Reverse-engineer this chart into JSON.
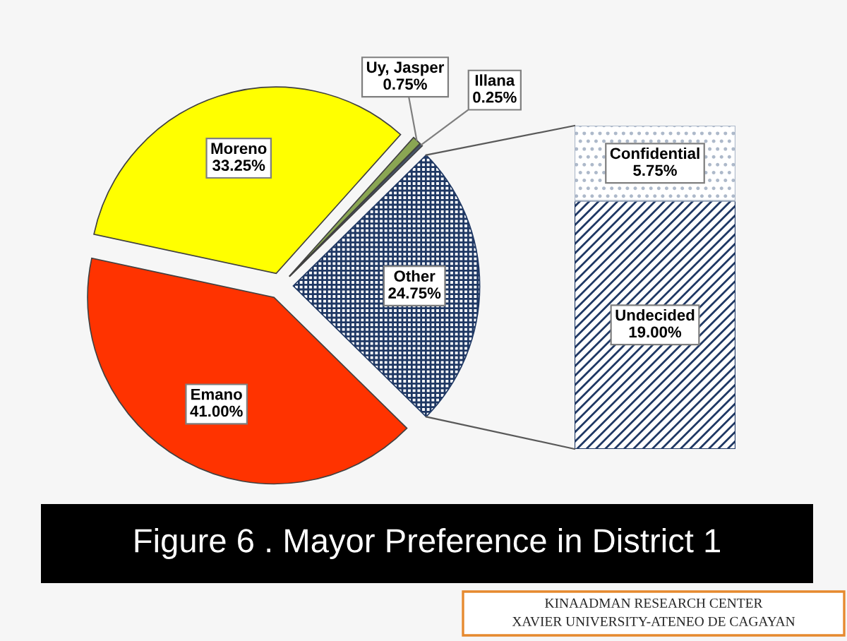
{
  "chart_data": [
    {
      "type": "pie",
      "title": "Figure 6 . Mayor Preference in District 1",
      "categories": [
        "Emano",
        "Moreno",
        "Uy, Jasper",
        "Illana",
        "Other"
      ],
      "values": [
        41.0,
        33.25,
        0.75,
        0.25,
        24.75
      ],
      "value_labels": [
        "41.00%",
        "33.25%",
        "0.75%",
        "0.25%",
        "24.75%"
      ],
      "colors": [
        "#ff3300",
        "#ffff00",
        "#8aa653",
        "#44546a",
        "#1f3864"
      ],
      "annotations": [
        "KINAADMAN RESEARCH CENTER",
        "XAVIER UNIVERSITY-ATENEO DE CAGAYAN"
      ]
    },
    {
      "type": "bar",
      "stacked": true,
      "categories": [
        null
      ],
      "series": [
        {
          "name": "Undecided",
          "color": "#1f3864",
          "values": [
            19.0
          ],
          "value_labels": [
            "19.00%"
          ]
        },
        {
          "name": "Confidential",
          "color": "#adb9ca",
          "values": [
            5.75
          ],
          "value_labels": [
            "5.75%"
          ]
        }
      ]
    }
  ]
}
